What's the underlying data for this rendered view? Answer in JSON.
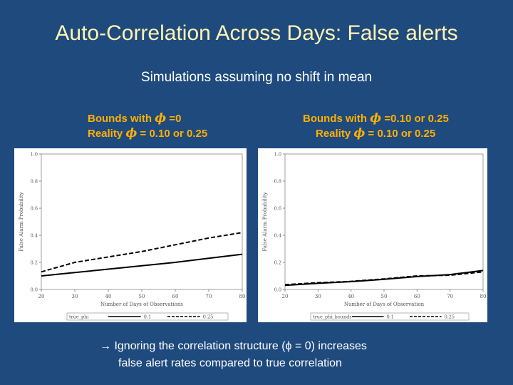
{
  "slide": {
    "title": "Auto-Correlation Across Days: False alerts",
    "subtitle": "Simulations assuming no shift in mean",
    "footnote_line1": "→ Ignoring the correlation structure (ϕ = 0) increases",
    "footnote_line2": "false alert rates compared to true correlation"
  },
  "captions": {
    "left": {
      "line1_prefix": "Bounds with ",
      "line1_phi": "ϕ",
      "line1_suffix": " =0",
      "line2_prefix": "Reality ",
      "line2_phi": "ϕ",
      "line2_suffix": " = 0.10 or 0.25"
    },
    "right": {
      "line1_prefix": "Bounds with ",
      "line1_phi": "ϕ",
      "line1_suffix": " =0.10 or 0.25",
      "line2_prefix": "Reality ",
      "line2_phi": "ϕ",
      "line2_suffix": " = 0.10 or 0.25"
    }
  },
  "colors": {
    "background": "#1f4a7e",
    "title": "#fff3b0",
    "caption": "#ffb000",
    "line": "#000000"
  },
  "chart_data": [
    {
      "type": "line",
      "xlabel": "Number of Days of Observations",
      "ylabel": "False Alarm Probability",
      "xlim": [
        20,
        80
      ],
      "ylim": [
        0,
        1
      ],
      "xticks": [
        20,
        30,
        40,
        50,
        60,
        70,
        80
      ],
      "yticks": [
        "0.0",
        "0.2",
        "0.4",
        "0.6",
        "0.8",
        "1.0"
      ],
      "x": [
        20,
        30,
        40,
        50,
        60,
        70,
        80
      ],
      "legend_title": "true_phi",
      "series": [
        {
          "name": "0.1",
          "dash": "solid",
          "values": [
            0.1,
            0.125,
            0.15,
            0.175,
            0.2,
            0.23,
            0.26
          ]
        },
        {
          "name": "0.25",
          "dash": "dashed",
          "values": [
            0.13,
            0.2,
            0.24,
            0.28,
            0.33,
            0.38,
            0.42
          ]
        }
      ]
    },
    {
      "type": "line",
      "xlabel": "Number of Days of Observation",
      "ylabel": "False Alarm Probability",
      "xlim": [
        20,
        80
      ],
      "ylim": [
        0,
        1
      ],
      "xticks": [
        20,
        30,
        40,
        50,
        60,
        70,
        80
      ],
      "yticks": [
        "0.0",
        "0.2",
        "0.4",
        "0.6",
        "0.8",
        "1.0"
      ],
      "x": [
        20,
        30,
        40,
        50,
        60,
        70,
        80
      ],
      "legend_title": "true_phi_bounds",
      "series": [
        {
          "name": "0.1",
          "dash": "solid",
          "values": [
            0.03,
            0.045,
            0.058,
            0.075,
            0.095,
            0.11,
            0.14
          ]
        },
        {
          "name": "0.25",
          "dash": "dashed",
          "values": [
            0.035,
            0.05,
            0.06,
            0.078,
            0.1,
            0.105,
            0.13
          ]
        }
      ]
    }
  ]
}
